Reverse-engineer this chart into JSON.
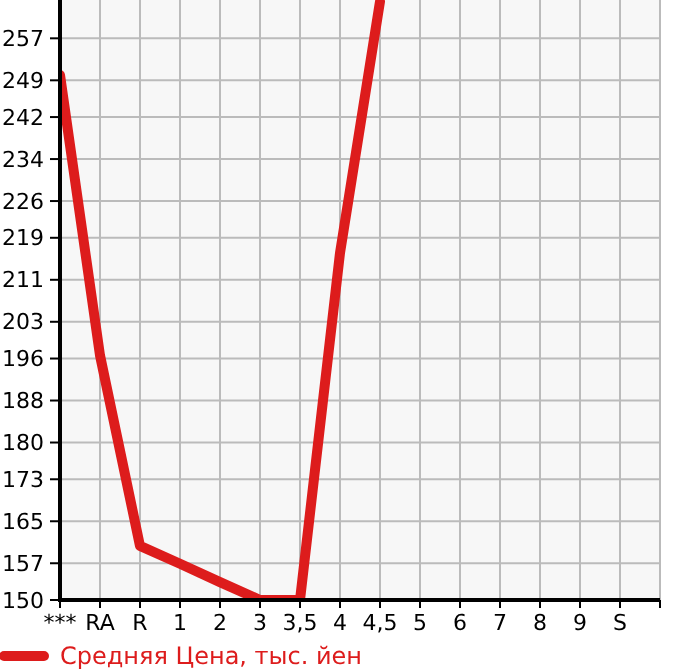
{
  "chart_data": {
    "type": "line",
    "categories": [
      "***",
      "RA",
      "R",
      "1",
      "2",
      "3",
      "3,5",
      "4",
      "4,5",
      "5",
      "6",
      "7",
      "8",
      "9",
      "S",
      null
    ],
    "series": [
      {
        "name": "Средняя Цена, тыс. йен",
        "color": "#dd1c1c",
        "values": [
          250,
          196.6,
          160.3,
          156.9,
          153.4,
          150,
          150,
          216.1,
          264,
          null,
          null,
          null,
          null,
          null,
          null,
          null
        ]
      }
    ],
    "ylim": [
      150,
      264.3
    ],
    "yticks": [
      150,
      157,
      165,
      173,
      180,
      188,
      196,
      203,
      211,
      219,
      226,
      234,
      242,
      249,
      257
    ],
    "grid": true,
    "legend": "bottom",
    "marker": "none",
    "line_style": "solid"
  }
}
